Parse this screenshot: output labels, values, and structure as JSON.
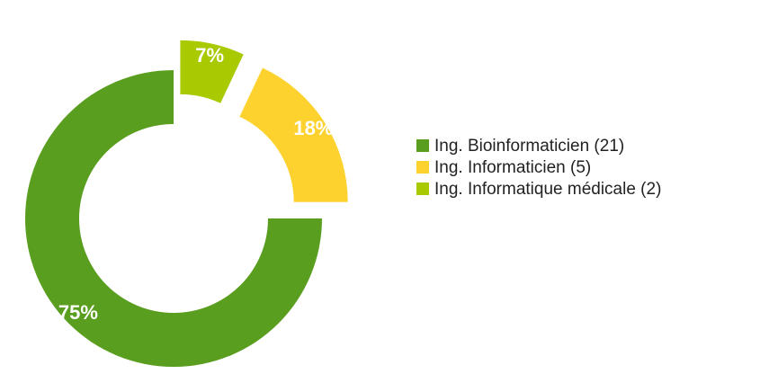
{
  "chart_data": {
    "type": "donut",
    "categories": [
      "Ing. Bioinformaticien (21)",
      "Ing. Informaticien (5)",
      "Ing. Informatique médicale (2)"
    ],
    "values": [
      75,
      18,
      7
    ],
    "value_labels": [
      "75%",
      "18%",
      "7%"
    ],
    "colors": [
      "#5a9e1f",
      "#fdd22e",
      "#a9c900"
    ],
    "legend": "right"
  }
}
